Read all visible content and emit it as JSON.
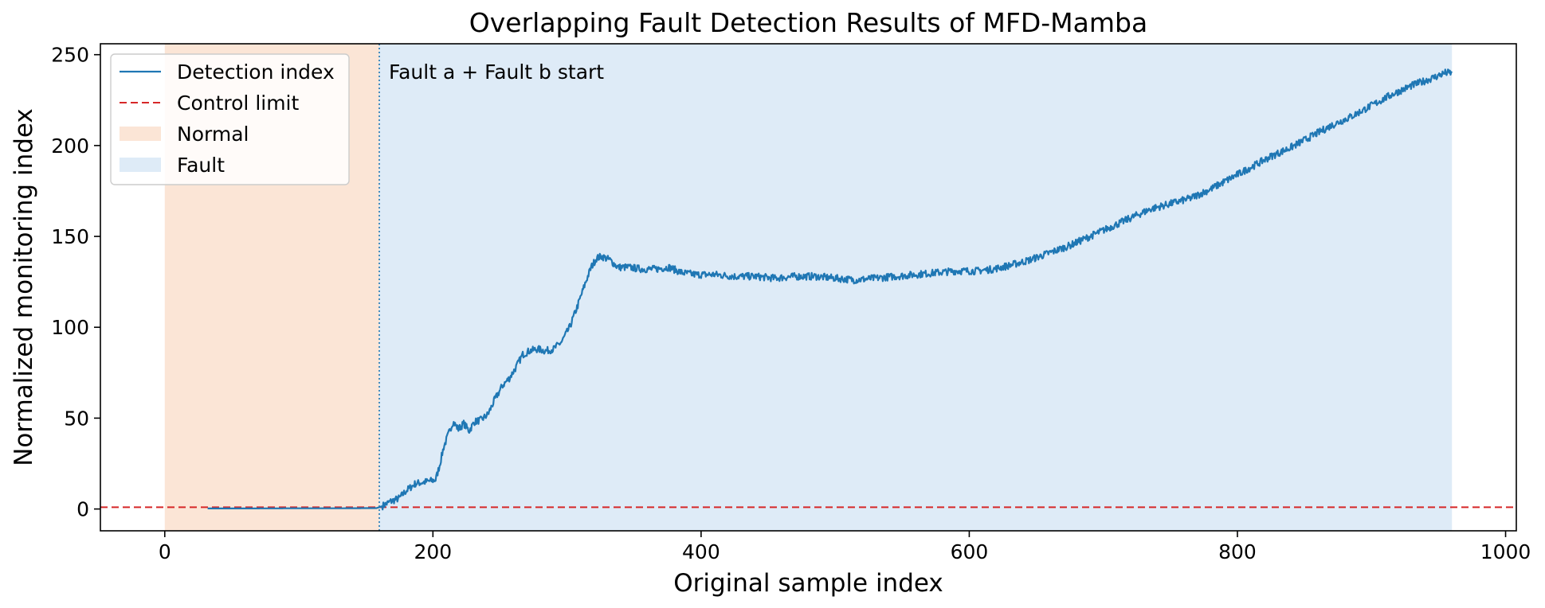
{
  "chart_data": {
    "type": "line",
    "title": "Overlapping Fault Detection Results of MFD-Mamba",
    "xlabel": "Original sample index",
    "ylabel": "Normalized monitoring index",
    "xlim": [
      -48,
      1008
    ],
    "ylim": [
      -12,
      256
    ],
    "xticks": [
      0,
      200,
      400,
      600,
      800,
      1000
    ],
    "yticks": [
      0,
      50,
      100,
      150,
      200,
      250
    ],
    "grid": false,
    "legend_position": "top-left",
    "legend": [
      {
        "label": "Detection index",
        "style": "solid-line",
        "color": "#1f77b4"
      },
      {
        "label": "Control limit",
        "style": "dashed-line",
        "color": "#d62728"
      },
      {
        "label": "Normal",
        "style": "patch",
        "color": "#fbe5d6"
      },
      {
        "label": "Fault",
        "style": "patch",
        "color": "#deebf7"
      }
    ],
    "regions": [
      {
        "name": "Normal",
        "x_start": 0,
        "x_end": 160,
        "color": "#fbe5d6"
      },
      {
        "name": "Fault",
        "x_start": 160,
        "x_end": 960,
        "color": "#deebf7"
      }
    ],
    "control_limit": {
      "y": 1,
      "color": "#d62728"
    },
    "fault_start": {
      "x": 160,
      "label": "Fault a + Fault b start"
    },
    "series": [
      {
        "name": "Detection index",
        "color": "#1f77b4",
        "points": [
          [
            32,
            0.3
          ],
          [
            60,
            0.3
          ],
          [
            100,
            0.4
          ],
          [
            130,
            0.4
          ],
          [
            158,
            0.5
          ],
          [
            162,
            1.5
          ],
          [
            168,
            4
          ],
          [
            175,
            6
          ],
          [
            180,
            10
          ],
          [
            187,
            14
          ],
          [
            195,
            15
          ],
          [
            202,
            16
          ],
          [
            205,
            24
          ],
          [
            208,
            34
          ],
          [
            212,
            42
          ],
          [
            215,
            48
          ],
          [
            219,
            44
          ],
          [
            223,
            47
          ],
          [
            227,
            43
          ],
          [
            231,
            48
          ],
          [
            236,
            49
          ],
          [
            241,
            52
          ],
          [
            246,
            60
          ],
          [
            252,
            68
          ],
          [
            257,
            72
          ],
          [
            262,
            78
          ],
          [
            267,
            85
          ],
          [
            272,
            87
          ],
          [
            278,
            88
          ],
          [
            284,
            87
          ],
          [
            290,
            88
          ],
          [
            296,
            92
          ],
          [
            302,
            100
          ],
          [
            308,
            112
          ],
          [
            314,
            125
          ],
          [
            318,
            133
          ],
          [
            322,
            138
          ],
          [
            326,
            139
          ],
          [
            332,
            137
          ],
          [
            338,
            133
          ],
          [
            346,
            133
          ],
          [
            356,
            132
          ],
          [
            366,
            132
          ],
          [
            376,
            133
          ],
          [
            386,
            130
          ],
          [
            396,
            129
          ],
          [
            410,
            129
          ],
          [
            425,
            128
          ],
          [
            440,
            128
          ],
          [
            455,
            127
          ],
          [
            470,
            128
          ],
          [
            485,
            128
          ],
          [
            500,
            127
          ],
          [
            515,
            126
          ],
          [
            530,
            127
          ],
          [
            545,
            128
          ],
          [
            560,
            129
          ],
          [
            575,
            130
          ],
          [
            590,
            131
          ],
          [
            605,
            131
          ],
          [
            618,
            132
          ],
          [
            630,
            134
          ],
          [
            645,
            137
          ],
          [
            660,
            141
          ],
          [
            675,
            145
          ],
          [
            690,
            150
          ],
          [
            705,
            155
          ],
          [
            720,
            160
          ],
          [
            735,
            165
          ],
          [
            750,
            168
          ],
          [
            765,
            171
          ],
          [
            780,
            176
          ],
          [
            795,
            182
          ],
          [
            810,
            188
          ],
          [
            825,
            194
          ],
          [
            840,
            199
          ],
          [
            855,
            205
          ],
          [
            870,
            211
          ],
          [
            885,
            216
          ],
          [
            900,
            222
          ],
          [
            915,
            228
          ],
          [
            930,
            233
          ],
          [
            945,
            237
          ],
          [
            955,
            240
          ],
          [
            960,
            240
          ]
        ]
      }
    ]
  }
}
